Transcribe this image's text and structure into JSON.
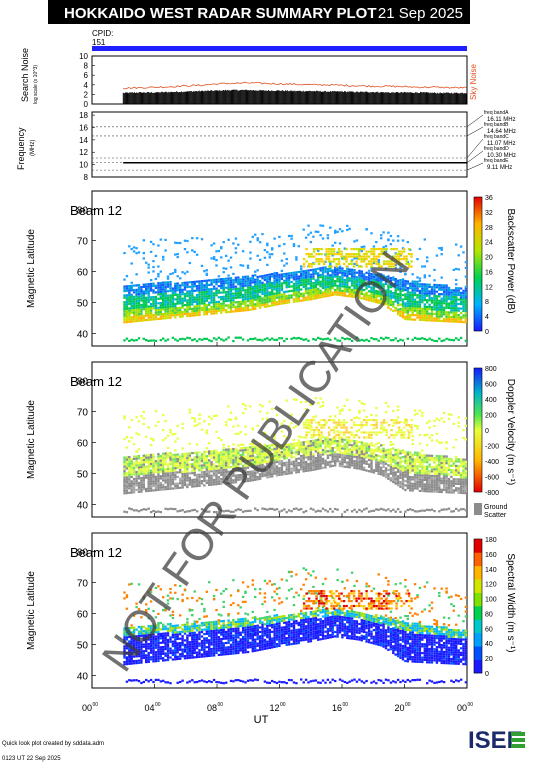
{
  "header": {
    "title": "HOKKAIDO WEST RADAR SUMMARY PLOT",
    "date": "21 Sep 2025"
  },
  "cpid": {
    "label": "CPID:",
    "value": "151"
  },
  "colors": {
    "header_bg": "#000000",
    "header_text": "#ffffff",
    "cpid_bar": "#2020ff",
    "noise": "#e05020",
    "ground_scatter": "#8c8c8c"
  },
  "noise_panel": {
    "ylabel": "Search Noise",
    "ylabel_sub": "log scale (x 10^3)",
    "yticks": [
      "10",
      "8",
      "6",
      "4",
      "2",
      "0"
    ],
    "right_label": "Sky Noise",
    "series_sky_noise_per_hour": [
      3.3,
      3.4,
      3.5,
      3.6,
      3.8,
      3.9,
      4.2,
      4.3,
      4.4,
      4.3,
      4.2,
      4.1,
      4.0,
      4.0,
      3.9,
      3.8,
      3.7,
      3.7,
      3.6,
      3.5,
      3.5,
      3.4
    ],
    "series_search_noise_per_hour": [
      2.3,
      2.4,
      2.4,
      2.5,
      2.6,
      2.7,
      2.8,
      2.9,
      2.9,
      2.8,
      2.8,
      2.7,
      2.7,
      2.6,
      2.6,
      2.5,
      2.5,
      2.4,
      2.4,
      2.4,
      2.3,
      2.3
    ]
  },
  "freq_panel": {
    "ylabel": "Frequency",
    "ylabel_sub": "(MHz)",
    "yticks": [
      "18",
      "16",
      "14",
      "12",
      "10",
      "8"
    ],
    "bands": [
      {
        "label": "freq bandA",
        "value": "16.11 MHz",
        "mhz": 16.11
      },
      {
        "label": "freq bandB",
        "value": "14.64 MHz",
        "mhz": 14.64
      },
      {
        "label": "freq bandC",
        "value": "11.07 MHz",
        "mhz": 11.07
      },
      {
        "label": "freq bandD",
        "value": "10.30 MHz",
        "mhz": 10.3
      },
      {
        "label": "freq bandE",
        "value": "9.11 MHz",
        "mhz": 9.11
      }
    ],
    "operating_mhz": 10.3
  },
  "panels": [
    {
      "beam": "Beam 12",
      "ylabel": "Magnetic Latitude",
      "cbar_label": "Backscatter Power (dB)",
      "cbar_ticks": [
        "36",
        "32",
        "28",
        "24",
        "20",
        "16",
        "12",
        "8",
        "4",
        "0"
      ],
      "scheme": "power"
    },
    {
      "beam": "Beam 12",
      "ylabel": "Magnetic Latitude",
      "cbar_label": "Doppler Velocity (m s⁻¹)",
      "cbar_ticks": [
        "800",
        "600",
        "400",
        "200",
        "0",
        "-200",
        "-400",
        "-600",
        "-800"
      ],
      "scheme": "velocity",
      "gs_label_1": "Ground",
      "gs_label_2": "Scatter"
    },
    {
      "beam": "Beam 12",
      "ylabel": "Magnetic Latitude",
      "cbar_label": "Spectral Width (m s⁻¹)",
      "cbar_ticks": [
        "180",
        "160",
        "140",
        "120",
        "100",
        "80",
        "60",
        "40",
        "20",
        "0"
      ],
      "scheme": "width"
    }
  ],
  "lat_ticks": [
    "80",
    "70",
    "60",
    "50",
    "40"
  ],
  "x_axis": {
    "label": "UT",
    "ticks": [
      {
        "h": "00",
        "m": "00"
      },
      {
        "h": "04",
        "m": "00"
      },
      {
        "h": "08",
        "m": "00"
      },
      {
        "h": "12",
        "m": "00"
      },
      {
        "h": "16",
        "m": "00"
      },
      {
        "h": "20",
        "m": "00"
      },
      {
        "h": "00",
        "m": "00"
      }
    ]
  },
  "chart_data": {
    "type": "heatmap",
    "title": "HOKKAIDO WEST RADAR SUMMARY PLOT",
    "date": "21 Sep 2025",
    "xlabel": "UT",
    "ylabel": "Magnetic Latitude",
    "xlim_hours": [
      0,
      24
    ],
    "ylim": [
      36,
      86
    ],
    "data_start_hour": 2.0,
    "lower_band_edge_by_hour": [
      [
        2,
        44
      ],
      [
        4,
        45
      ],
      [
        6,
        46
      ],
      [
        8,
        47
      ],
      [
        10,
        48
      ],
      [
        12,
        50
      ],
      [
        14,
        51.5
      ],
      [
        15.5,
        53
      ],
      [
        17,
        52
      ],
      [
        18.5,
        50
      ],
      [
        20,
        45
      ],
      [
        22,
        44.5
      ],
      [
        24,
        44
      ]
    ],
    "upper_band_edge_by_hour": [
      [
        2,
        56
      ],
      [
        4,
        57
      ],
      [
        6,
        57
      ],
      [
        8,
        58
      ],
      [
        10,
        59
      ],
      [
        12,
        60
      ],
      [
        13.5,
        61
      ],
      [
        15,
        62
      ],
      [
        17,
        61
      ],
      [
        19,
        59
      ],
      [
        21,
        57
      ],
      [
        24,
        55
      ]
    ],
    "high_latitude_patch": {
      "hours": [
        13.5,
        20.5
      ],
      "lat": [
        62,
        68
      ]
    },
    "near_range_lat": 38.5
  },
  "footer": {
    "credit": "Quick look plot created by sddata.adm",
    "created": "0123 UT 22 Sep 2025",
    "logo": "ISEE"
  },
  "watermark": "NOT FOR PUBLICATION"
}
